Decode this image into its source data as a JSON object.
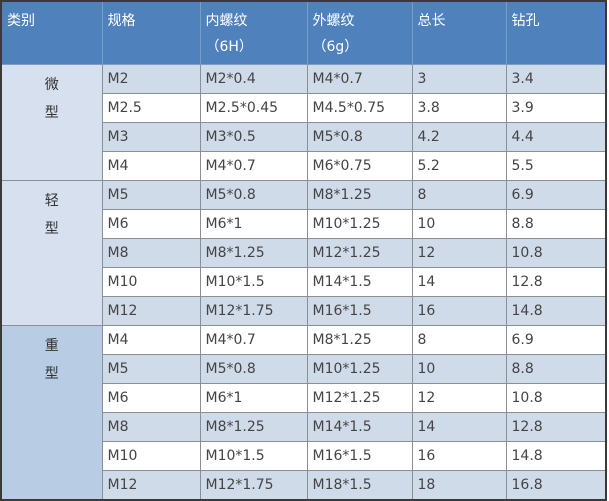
{
  "header": {
    "category": "类别",
    "spec": "规格",
    "internal_thread": "内螺纹",
    "internal_thread_grade": "（6H）",
    "external_thread": "外螺纹",
    "external_thread_grade": "（6g）",
    "total_length": "总长",
    "drill_hole": "钻孔"
  },
  "groups": [
    {
      "label_line1": "微",
      "label_line2": "型",
      "rows": [
        {
          "spec": "M2",
          "internal": "M2*0.4",
          "external": "M4*0.7",
          "length": "3",
          "drill": "3.4"
        },
        {
          "spec": "M2.5",
          "internal": "M2.5*0.45",
          "external": "M4.5*0.75",
          "length": "3.8",
          "drill": "3.9"
        },
        {
          "spec": "M3",
          "internal": "M3*0.5",
          "external": "M5*0.8",
          "length": "4.2",
          "drill": "4.4"
        },
        {
          "spec": "M4",
          "internal": "M4*0.7",
          "external": "M6*0.75",
          "length": "5.2",
          "drill": "5.5"
        }
      ]
    },
    {
      "label_line1": "轻",
      "label_line2": "型",
      "rows": [
        {
          "spec": "M5",
          "internal": "M5*0.8",
          "external": "M8*1.25",
          "length": "8",
          "drill": "6.9"
        },
        {
          "spec": "M6",
          "internal": "M6*1",
          "external": "M10*1.25",
          "length": "10",
          "drill": "8.8"
        },
        {
          "spec": "M8",
          "internal": "M8*1.25",
          "external": "M12*1.25",
          "length": "12",
          "drill": "10.8"
        },
        {
          "spec": "M10",
          "internal": "M10*1.5",
          "external": "M14*1.5",
          "length": "14",
          "drill": "12.8"
        },
        {
          "spec": "M12",
          "internal": "M12*1.75",
          "external": "M16*1.5",
          "length": "16",
          "drill": "14.8"
        }
      ]
    },
    {
      "label_line1": "重",
      "label_line2": "型",
      "rows": [
        {
          "spec": "M4",
          "internal": "M4*0.7",
          "external": "M8*1.25",
          "length": "8",
          "drill": "6.9"
        },
        {
          "spec": "M5",
          "internal": "M5*0.8",
          "external": "M10*1.25",
          "length": "10",
          "drill": "8.8"
        },
        {
          "spec": "M6",
          "internal": "M6*1",
          "external": "M12*1.25",
          "length": "12",
          "drill": "10.8"
        },
        {
          "spec": "M8",
          "internal": "M8*1.25",
          "external": "M14*1.5",
          "length": "14",
          "drill": "12.8"
        },
        {
          "spec": "M10",
          "internal": "M10*1.5",
          "external": "M16*1.5",
          "length": "16",
          "drill": "14.8"
        },
        {
          "spec": "M12",
          "internal": "M12*1.75",
          "external": "M18*1.5",
          "length": "18",
          "drill": "16.8"
        }
      ]
    }
  ],
  "colors": {
    "header": "#4f81bd",
    "row_light": "#d0dbea",
    "category_heavy": "#b8cce4"
  }
}
